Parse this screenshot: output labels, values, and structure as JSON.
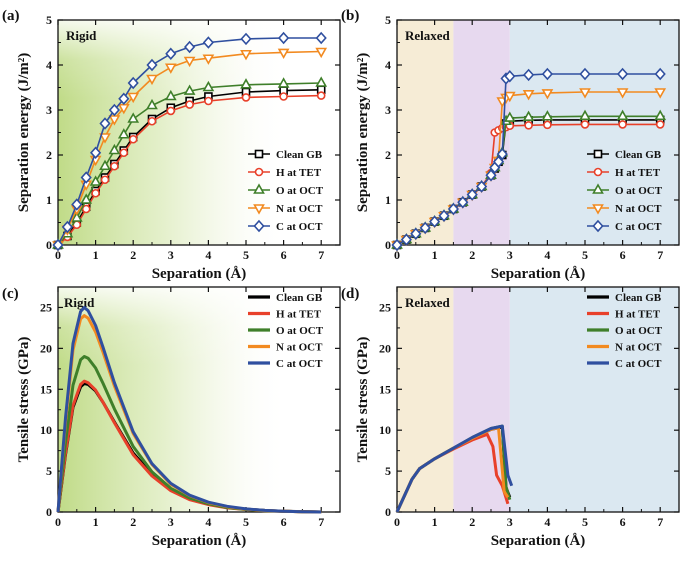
{
  "figure_name": "separation-energy-and-tensile-stress-figure",
  "chart_data": [
    {
      "id": "a",
      "type": "line",
      "panel_label": "(a)",
      "title": "Rigid",
      "xlabel": "Separation (Å)",
      "ylabel": "Separation energy (J/m²)",
      "xlim": [
        0,
        7.5
      ],
      "ylim": [
        0,
        5
      ],
      "xticks": [
        0,
        1,
        2,
        3,
        4,
        5,
        6,
        7
      ],
      "yticks": [
        0,
        1,
        2,
        3,
        4,
        5
      ],
      "markers": true,
      "background": "green-fade",
      "x": [
        0,
        0.25,
        0.5,
        0.75,
        1.0,
        1.25,
        1.5,
        1.75,
        2.0,
        2.5,
        3.0,
        3.5,
        4.0,
        5.0,
        6.0,
        7.0
      ],
      "series": [
        {
          "name": "Clean GB",
          "color": "#000000",
          "marker": "square",
          "values": [
            0,
            0.2,
            0.5,
            0.85,
            1.2,
            1.5,
            1.8,
            2.1,
            2.4,
            2.8,
            3.05,
            3.2,
            3.3,
            3.4,
            3.43,
            3.45
          ]
        },
        {
          "name": "H at TET",
          "color": "#e8402a",
          "marker": "circle",
          "values": [
            0,
            0.18,
            0.45,
            0.8,
            1.15,
            1.45,
            1.75,
            2.05,
            2.35,
            2.75,
            2.98,
            3.12,
            3.2,
            3.28,
            3.3,
            3.32
          ]
        },
        {
          "name": "O at OCT",
          "color": "#3f7f2a",
          "marker": "triangle-up",
          "values": [
            0,
            0.25,
            0.6,
            1.0,
            1.4,
            1.75,
            2.1,
            2.45,
            2.8,
            3.1,
            3.3,
            3.42,
            3.5,
            3.56,
            3.58,
            3.6
          ]
        },
        {
          "name": "N at OCT",
          "color": "#f28a20",
          "marker": "triangle-down",
          "values": [
            0,
            0.35,
            0.8,
            1.35,
            1.9,
            2.4,
            2.8,
            3.05,
            3.3,
            3.7,
            3.95,
            4.1,
            4.15,
            4.25,
            4.28,
            4.3
          ]
        },
        {
          "name": "C at OCT",
          "color": "#2f4f9f",
          "marker": "diamond",
          "values": [
            0,
            0.4,
            0.9,
            1.5,
            2.05,
            2.7,
            3.0,
            3.25,
            3.6,
            4.0,
            4.25,
            4.4,
            4.5,
            4.58,
            4.6,
            4.6
          ]
        }
      ]
    },
    {
      "id": "b",
      "type": "line",
      "panel_label": "(b)",
      "title": "Relaxed",
      "xlabel": "Separation (Å)",
      "ylabel": "Separation energy (J/m²)",
      "xlim": [
        0,
        7.5
      ],
      "ylim": [
        0,
        5
      ],
      "xticks": [
        0,
        1,
        2,
        3,
        4,
        5,
        6,
        7
      ],
      "yticks": [
        0,
        1,
        2,
        3,
        4,
        5
      ],
      "markers": true,
      "background": "regions",
      "regions": [
        {
          "from": 0,
          "to": 1.5,
          "color": "#f6ecd6"
        },
        {
          "from": 1.5,
          "to": 3.0,
          "color": "#e7d9ef"
        },
        {
          "from": 3.0,
          "to": 7.5,
          "color": "#dbe8f1"
        }
      ],
      "series": [
        {
          "name": "Clean GB",
          "color": "#000000",
          "marker": "square",
          "x": [
            0,
            0.25,
            0.5,
            0.75,
            1.0,
            1.25,
            1.5,
            1.75,
            2.0,
            2.25,
            2.5,
            2.6,
            2.7,
            2.8,
            2.9,
            3.0,
            3.5,
            4.0,
            5.0,
            6.0,
            7.0
          ],
          "values": [
            0,
            0.12,
            0.25,
            0.38,
            0.52,
            0.65,
            0.8,
            0.95,
            1.12,
            1.3,
            1.55,
            1.7,
            1.85,
            2.0,
            2.7,
            2.75,
            2.77,
            2.78,
            2.78,
            2.78,
            2.78
          ]
        },
        {
          "name": "H at TET",
          "color": "#e8402a",
          "marker": "circle",
          "x": [
            0,
            0.25,
            0.5,
            0.75,
            1.0,
            1.25,
            1.5,
            1.75,
            2.0,
            2.25,
            2.5,
            2.6,
            2.7,
            2.8,
            2.9,
            3.0,
            3.5,
            4.0,
            5.0,
            6.0,
            7.0
          ],
          "values": [
            0,
            0.12,
            0.25,
            0.38,
            0.52,
            0.65,
            0.8,
            0.95,
            1.12,
            1.3,
            1.6,
            2.5,
            2.55,
            2.6,
            2.62,
            2.65,
            2.66,
            2.67,
            2.68,
            2.68,
            2.68
          ]
        },
        {
          "name": "O at OCT",
          "color": "#3f7f2a",
          "marker": "triangle-up",
          "x": [
            0,
            0.25,
            0.5,
            0.75,
            1.0,
            1.25,
            1.5,
            1.75,
            2.0,
            2.25,
            2.5,
            2.6,
            2.7,
            2.8,
            2.9,
            3.0,
            3.5,
            4.0,
            5.0,
            6.0,
            7.0
          ],
          "values": [
            0,
            0.12,
            0.25,
            0.38,
            0.52,
            0.65,
            0.8,
            0.95,
            1.12,
            1.3,
            1.55,
            1.72,
            1.88,
            2.05,
            2.75,
            2.82,
            2.84,
            2.85,
            2.86,
            2.86,
            2.86
          ]
        },
        {
          "name": "N at OCT",
          "color": "#f28a20",
          "marker": "triangle-down",
          "x": [
            0,
            0.25,
            0.5,
            0.75,
            1.0,
            1.25,
            1.5,
            1.75,
            2.0,
            2.25,
            2.5,
            2.6,
            2.7,
            2.8,
            2.9,
            3.0,
            3.5,
            4.0,
            5.0,
            6.0,
            7.0
          ],
          "values": [
            0,
            0.12,
            0.25,
            0.38,
            0.52,
            0.65,
            0.8,
            0.95,
            1.12,
            1.3,
            1.55,
            1.72,
            1.88,
            3.2,
            3.28,
            3.32,
            3.36,
            3.38,
            3.4,
            3.4,
            3.4
          ]
        },
        {
          "name": "C at OCT",
          "color": "#2f4f9f",
          "marker": "diamond",
          "x": [
            0,
            0.25,
            0.5,
            0.75,
            1.0,
            1.25,
            1.5,
            1.75,
            2.0,
            2.25,
            2.5,
            2.6,
            2.7,
            2.8,
            2.9,
            3.0,
            3.5,
            4.0,
            5.0,
            6.0,
            7.0
          ],
          "values": [
            0,
            0.12,
            0.25,
            0.38,
            0.52,
            0.65,
            0.8,
            0.95,
            1.12,
            1.3,
            1.55,
            1.72,
            1.85,
            2.02,
            3.7,
            3.75,
            3.78,
            3.8,
            3.8,
            3.8,
            3.8
          ]
        }
      ]
    },
    {
      "id": "c",
      "type": "line",
      "panel_label": "(c)",
      "title": "Rigid",
      "xlabel": "Separation (Å)",
      "ylabel": "Tensile stress (GPa)",
      "xlim": [
        0,
        7.5
      ],
      "ylim": [
        0,
        27.5
      ],
      "xticks": [
        0,
        1,
        2,
        3,
        4,
        5,
        6,
        7
      ],
      "yticks": [
        0,
        5,
        10,
        15,
        20,
        25
      ],
      "markers": false,
      "background": "green-fade",
      "x": [
        0,
        0.2,
        0.4,
        0.6,
        0.7,
        0.8,
        1.0,
        1.2,
        1.5,
        2.0,
        2.5,
        3.0,
        3.5,
        4.0,
        4.5,
        5.0,
        5.5,
        6.0,
        6.5,
        7.0
      ],
      "series": [
        {
          "name": "Clean GB",
          "color": "#000000",
          "values": [
            0,
            7.0,
            12.8,
            15.3,
            15.7,
            15.6,
            14.8,
            13.4,
            11.0,
            7.2,
            4.6,
            2.8,
            1.7,
            1.0,
            0.6,
            0.35,
            0.2,
            0.1,
            0.05,
            0
          ]
        },
        {
          "name": "H at TET",
          "color": "#e8402a",
          "values": [
            0,
            7.2,
            13.0,
            15.6,
            16.0,
            15.8,
            14.9,
            13.4,
            10.9,
            7.0,
            4.4,
            2.6,
            1.5,
            0.9,
            0.5,
            0.3,
            0.15,
            0.08,
            0.03,
            0
          ]
        },
        {
          "name": "O at OCT",
          "color": "#3f7f2a",
          "values": [
            0,
            8.5,
            15.5,
            18.6,
            19.0,
            18.8,
            17.6,
            15.7,
            12.6,
            8.0,
            4.9,
            2.9,
            1.7,
            1.0,
            0.55,
            0.3,
            0.15,
            0.08,
            0.03,
            0
          ]
        },
        {
          "name": "N at OCT",
          "color": "#f28a20",
          "values": [
            0,
            11.0,
            19.8,
            23.6,
            24.0,
            23.7,
            22.0,
            19.5,
            15.4,
            9.6,
            5.8,
            3.4,
            2.0,
            1.15,
            0.65,
            0.35,
            0.18,
            0.08,
            0.03,
            0
          ]
        },
        {
          "name": "C at OCT",
          "color": "#2f4f9f",
          "values": [
            0,
            11.5,
            20.6,
            24.5,
            25.0,
            24.6,
            22.8,
            20.1,
            15.8,
            9.8,
            5.9,
            3.5,
            2.05,
            1.2,
            0.7,
            0.38,
            0.2,
            0.1,
            0.04,
            0
          ]
        }
      ]
    },
    {
      "id": "d",
      "type": "line",
      "panel_label": "(d)",
      "title": "Relaxed",
      "xlabel": "Separation (Å)",
      "ylabel": "Tensile stress (GPa)",
      "xlim": [
        0,
        7.5
      ],
      "ylim": [
        0,
        27.5
      ],
      "xticks": [
        0,
        1,
        2,
        3,
        4,
        5,
        6,
        7
      ],
      "yticks": [
        0,
        5,
        10,
        15,
        20,
        25
      ],
      "markers": false,
      "background": "regions",
      "regions": [
        {
          "from": 0,
          "to": 1.5,
          "color": "#f6ecd6"
        },
        {
          "from": 1.5,
          "to": 3.0,
          "color": "#e7d9ef"
        },
        {
          "from": 3.0,
          "to": 7.5,
          "color": "#dbe8f1"
        }
      ],
      "series": [
        {
          "name": "Clean GB",
          "color": "#000000",
          "x": [
            0,
            0.2,
            0.4,
            0.6,
            1.0,
            1.5,
            2.0,
            2.5,
            2.8,
            2.9,
            3.0
          ],
          "values": [
            0,
            2.0,
            4.0,
            5.3,
            6.5,
            7.8,
            9.0,
            10.1,
            10.4,
            3.0,
            1.8
          ]
        },
        {
          "name": "H at TET",
          "color": "#e8402a",
          "x": [
            0,
            0.2,
            0.4,
            0.6,
            1.0,
            1.5,
            2.0,
            2.4,
            2.55,
            2.65,
            2.8,
            2.95
          ],
          "values": [
            0,
            2.0,
            4.0,
            5.3,
            6.5,
            7.7,
            8.8,
            9.5,
            8.0,
            4.5,
            3.2,
            1.0
          ]
        },
        {
          "name": "O at OCT",
          "color": "#3f7f2a",
          "x": [
            0,
            0.2,
            0.4,
            0.6,
            1.0,
            1.5,
            2.0,
            2.5,
            2.8,
            2.9,
            3.0
          ],
          "values": [
            0,
            2.0,
            4.0,
            5.3,
            6.5,
            7.8,
            9.1,
            10.2,
            10.5,
            3.1,
            1.5
          ]
        },
        {
          "name": "N at OCT",
          "color": "#f28a20",
          "x": [
            0,
            0.2,
            0.4,
            0.6,
            1.0,
            1.5,
            2.0,
            2.5,
            2.7,
            2.85,
            2.95
          ],
          "values": [
            0,
            2.0,
            4.0,
            5.3,
            6.5,
            7.8,
            9.0,
            10.1,
            10.3,
            2.5,
            1.8
          ]
        },
        {
          "name": "C at OCT",
          "color": "#2f4f9f",
          "x": [
            0,
            0.2,
            0.4,
            0.6,
            1.0,
            1.5,
            2.0,
            2.5,
            2.8,
            2.95,
            3.05
          ],
          "values": [
            0,
            2.0,
            4.0,
            5.3,
            6.5,
            7.8,
            9.1,
            10.2,
            10.5,
            4.5,
            3.2
          ]
        }
      ]
    }
  ]
}
